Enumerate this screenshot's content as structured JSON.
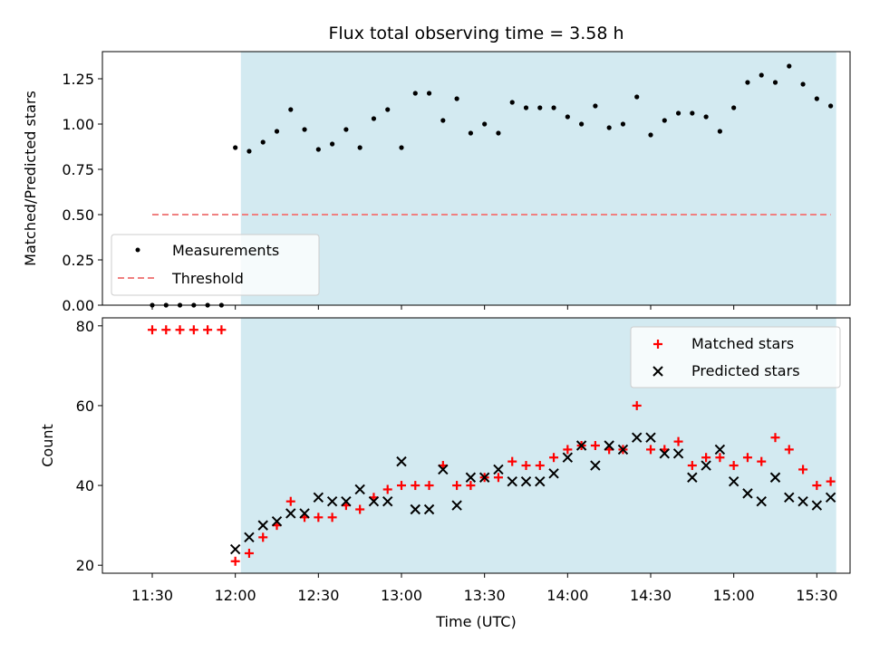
{
  "chart_data": [
    {
      "type": "scatter",
      "panel": "top",
      "title": "Flux total observing time = 3.58 h",
      "xlabel": "",
      "ylabel": "Matched/Predicted stars",
      "ylim": [
        0,
        1.4
      ],
      "yticks": [
        "0.00",
        "0.25",
        "0.50",
        "0.75",
        "1.00",
        "1.25"
      ],
      "yticks_values": [
        0,
        0.25,
        0.5,
        0.75,
        1.0,
        1.25
      ],
      "x_unit": "minutes after 11:30 UTC",
      "xlim_minutes": [
        -18,
        252
      ],
      "shaded_span": {
        "from": "12:02",
        "to": "15:37",
        "color": "#d3eaf1"
      },
      "legend": {
        "placement": "lower-left",
        "entries": [
          "Measurements",
          "Threshold"
        ]
      },
      "series": [
        {
          "name": "Measurements",
          "color": "#000000",
          "x_time": [
            "11:30",
            "11:35",
            "11:40",
            "11:45",
            "11:50",
            "11:55",
            "12:00",
            "12:05",
            "12:10",
            "12:15",
            "12:20",
            "12:25",
            "12:30",
            "12:35",
            "12:40",
            "12:45",
            "12:50",
            "12:55",
            "13:00",
            "13:05",
            "13:10",
            "13:15",
            "13:20",
            "13:25",
            "13:30",
            "13:35",
            "13:40",
            "13:45",
            "13:50",
            "13:55",
            "14:00",
            "14:05",
            "14:10",
            "14:15",
            "14:20",
            "14:25",
            "14:30",
            "14:35",
            "14:40",
            "14:45",
            "14:50",
            "14:55",
            "15:00",
            "15:05",
            "15:10",
            "15:15",
            "15:20",
            "15:25",
            "15:30",
            "15:35"
          ],
          "y": [
            0,
            0,
            0,
            0,
            0,
            0,
            0.87,
            0.85,
            0.9,
            0.96,
            1.08,
            0.97,
            0.86,
            0.89,
            0.97,
            0.87,
            1.03,
            1.08,
            0.87,
            1.17,
            1.17,
            1.02,
            1.14,
            0.95,
            1.0,
            0.95,
            1.12,
            1.09,
            1.09,
            1.09,
            1.04,
            1.0,
            1.1,
            0.98,
            1.0,
            1.15,
            0.94,
            1.02,
            1.06,
            1.06,
            1.04,
            0.96,
            1.09,
            1.23,
            1.27,
            1.23,
            1.32,
            1.22,
            1.14,
            1.1
          ]
        },
        {
          "name": "Threshold",
          "color": "#f08080",
          "style": "dashed",
          "x_time": [
            "11:30",
            "15:35"
          ],
          "y": [
            0.5,
            0.5
          ]
        }
      ]
    },
    {
      "type": "scatter",
      "panel": "bottom",
      "xlabel": "Time (UTC)",
      "ylabel": "Count",
      "ylim": [
        18,
        82
      ],
      "yticks": [
        "20",
        "40",
        "60",
        "80"
      ],
      "yticks_values": [
        20,
        40,
        60,
        80
      ],
      "xticks": [
        "11:30",
        "12:00",
        "12:30",
        "13:00",
        "13:30",
        "14:00",
        "14:30",
        "15:00",
        "15:30"
      ],
      "xticks_minutes": [
        0,
        30,
        60,
        90,
        120,
        150,
        180,
        210,
        240
      ],
      "x_unit": "minutes after 11:30 UTC",
      "xlim_minutes": [
        -18,
        252
      ],
      "shaded_span": {
        "from": "12:02",
        "to": "15:37",
        "color": "#d3eaf1"
      },
      "legend": {
        "placement": "upper-right",
        "entries": [
          "Matched stars",
          "Predicted stars"
        ]
      },
      "series": [
        {
          "name": "Matched stars",
          "color": "#ff0000",
          "marker": "+",
          "x_time": [
            "11:30",
            "11:35",
            "11:40",
            "11:45",
            "11:50",
            "11:55",
            "12:00",
            "12:05",
            "12:10",
            "12:15",
            "12:20",
            "12:25",
            "12:30",
            "12:35",
            "12:40",
            "12:45",
            "12:50",
            "12:55",
            "13:00",
            "13:05",
            "13:10",
            "13:15",
            "13:20",
            "13:25",
            "13:30",
            "13:35",
            "13:40",
            "13:45",
            "13:50",
            "13:55",
            "14:00",
            "14:05",
            "14:10",
            "14:15",
            "14:20",
            "14:25",
            "14:30",
            "14:35",
            "14:40",
            "14:45",
            "14:50",
            "14:55",
            "15:00",
            "15:05",
            "15:10",
            "15:15",
            "15:20",
            "15:25",
            "15:30",
            "15:35"
          ],
          "y": [
            79,
            79,
            79,
            79,
            79,
            79,
            21,
            23,
            27,
            30,
            36,
            32,
            32,
            32,
            35,
            34,
            37,
            39,
            40,
            40,
            40,
            45,
            40,
            40,
            42,
            42,
            46,
            45,
            45,
            47,
            49,
            50,
            50,
            49,
            49,
            60,
            49,
            49,
            51,
            45,
            47,
            47,
            45,
            47,
            46,
            52,
            49,
            44,
            40,
            41
          ]
        },
        {
          "name": "Predicted stars",
          "color": "#000000",
          "marker": "x",
          "x_time": [
            "12:00",
            "12:05",
            "12:10",
            "12:15",
            "12:20",
            "12:25",
            "12:30",
            "12:35",
            "12:40",
            "12:45",
            "12:50",
            "12:55",
            "13:00",
            "13:05",
            "13:10",
            "13:15",
            "13:20",
            "13:25",
            "13:30",
            "13:35",
            "13:40",
            "13:45",
            "13:50",
            "13:55",
            "14:00",
            "14:05",
            "14:10",
            "14:15",
            "14:20",
            "14:25",
            "14:30",
            "14:35",
            "14:40",
            "14:45",
            "14:50",
            "14:55",
            "15:00",
            "15:05",
            "15:10",
            "15:15",
            "15:20",
            "15:25",
            "15:30",
            "15:35"
          ],
          "y": [
            24,
            27,
            30,
            31,
            33,
            33,
            37,
            36,
            36,
            39,
            36,
            36,
            46,
            34,
            34,
            44,
            35,
            42,
            42,
            44,
            41,
            41,
            41,
            43,
            47,
            50,
            45,
            50,
            49,
            52,
            52,
            48,
            48,
            42,
            45,
            49,
            41,
            38,
            36,
            42,
            37,
            36,
            35,
            37
          ]
        }
      ]
    }
  ]
}
